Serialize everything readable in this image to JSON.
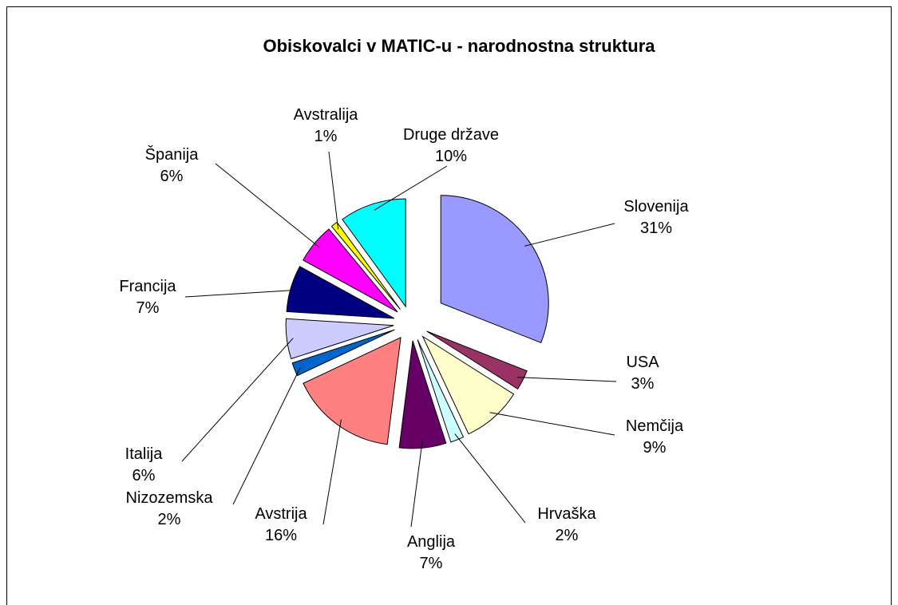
{
  "chart_data": {
    "type": "pie",
    "title": "Obiskovalci v MATIC-u - narodnostna struktura",
    "categories": [
      "Slovenija",
      "USA",
      "Nemčija",
      "Hrvaška",
      "Anglija",
      "Avstrija",
      "Nizozemska",
      "Italija",
      "Francija",
      "Španija",
      "Avstralija",
      "Druge države"
    ],
    "values": [
      31,
      3,
      9,
      2,
      7,
      16,
      2,
      6,
      7,
      6,
      1,
      10
    ],
    "value_labels": [
      "31%",
      "3%",
      "9%",
      "2%",
      "7%",
      "16%",
      "2%",
      "6%",
      "7%",
      "6%",
      "1%",
      "10%"
    ],
    "colors": [
      "#9999ff",
      "#993366",
      "#ffffcc",
      "#ccffff",
      "#660066",
      "#ff8080",
      "#0066cc",
      "#ccccff",
      "#000080",
      "#ff00ff",
      "#ffff00",
      "#00ffff"
    ]
  }
}
